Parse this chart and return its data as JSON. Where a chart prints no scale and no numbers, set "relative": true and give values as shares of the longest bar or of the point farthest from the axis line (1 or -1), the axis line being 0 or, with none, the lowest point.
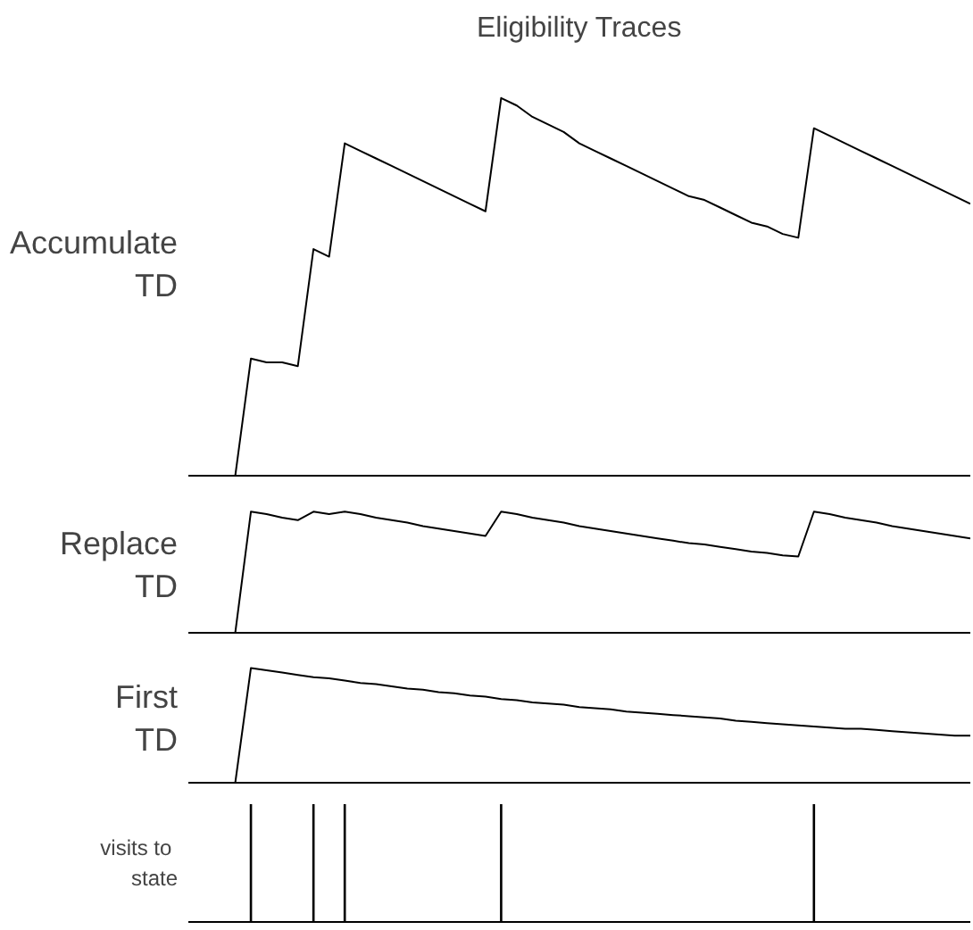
{
  "chart_data": [
    {
      "type": "line",
      "title": "Eligibility Traces",
      "ylabel": "Accumulate\nTD",
      "relative": true,
      "categories": [
        null,
        null,
        null,
        null,
        null,
        null,
        null,
        null,
        null,
        null,
        null,
        null,
        null,
        null,
        null,
        null,
        null,
        null,
        null,
        null,
        null,
        null,
        null,
        null,
        null,
        null,
        null,
        null,
        null,
        null,
        null,
        null,
        null,
        null,
        null,
        null,
        null,
        null,
        null,
        null,
        null,
        null,
        null,
        null,
        null,
        null,
        null,
        null,
        null,
        null,
        null
      ],
      "series": [
        {
          "color": "#000000",
          "values": [
            0,
            0,
            0,
            0,
            0.31,
            0.3,
            0.3,
            0.29,
            0.6,
            0.58,
            0.88,
            0.86,
            0.84,
            0.82,
            0.8,
            0.78,
            0.76,
            0.74,
            0.72,
            0.7,
            1,
            0.98,
            0.95,
            0.93,
            0.91,
            0.88,
            0.86,
            0.84,
            0.82,
            0.8,
            0.78,
            0.76,
            0.74,
            0.73,
            0.71,
            0.69,
            0.67,
            0.66,
            0.64,
            0.63,
            0.92,
            0.9,
            0.88,
            0.86,
            0.84,
            0.82,
            0.8,
            0.78,
            0.76,
            0.74,
            0.72
          ]
        }
      ]
    },
    {
      "type": "line",
      "ylabel": "Replace\nTD",
      "relative": true,
      "categories": [
        null,
        null,
        null,
        null,
        null,
        null,
        null,
        null,
        null,
        null,
        null,
        null,
        null,
        null,
        null,
        null,
        null,
        null,
        null,
        null,
        null,
        null,
        null,
        null,
        null,
        null,
        null,
        null,
        null,
        null,
        null,
        null,
        null,
        null,
        null,
        null,
        null,
        null,
        null,
        null,
        null,
        null,
        null,
        null,
        null,
        null,
        null,
        null,
        null,
        null,
        null
      ],
      "series": [
        {
          "color": "#000000",
          "values": [
            0,
            0,
            0,
            0,
            1,
            0.98,
            0.95,
            0.93,
            1,
            0.98,
            1,
            0.98,
            0.95,
            0.93,
            0.91,
            0.88,
            0.86,
            0.84,
            0.82,
            0.8,
            1,
            0.98,
            0.95,
            0.93,
            0.91,
            0.88,
            0.86,
            0.84,
            0.82,
            0.8,
            0.78,
            0.76,
            0.74,
            0.73,
            0.71,
            0.69,
            0.67,
            0.66,
            0.64,
            0.63,
            1,
            0.98,
            0.95,
            0.93,
            0.91,
            0.88,
            0.86,
            0.84,
            0.82,
            0.8,
            0.78
          ]
        }
      ]
    },
    {
      "type": "line",
      "ylabel": "First\nTD",
      "relative": true,
      "categories": [
        null,
        null,
        null,
        null,
        null,
        null,
        null,
        null,
        null,
        null,
        null,
        null,
        null,
        null,
        null,
        null,
        null,
        null,
        null,
        null,
        null,
        null,
        null,
        null,
        null,
        null,
        null,
        null,
        null,
        null,
        null,
        null,
        null,
        null,
        null,
        null,
        null,
        null,
        null,
        null,
        null,
        null,
        null,
        null,
        null,
        null,
        null,
        null,
        null,
        null,
        null
      ],
      "series": [
        {
          "color": "#000000",
          "values": [
            0,
            0,
            0,
            0,
            1,
            0.98,
            0.96,
            0.94,
            0.92,
            0.91,
            0.89,
            0.87,
            0.86,
            0.84,
            0.82,
            0.81,
            0.79,
            0.78,
            0.76,
            0.75,
            0.73,
            0.72,
            0.7,
            0.69,
            0.68,
            0.66,
            0.65,
            0.64,
            0.62,
            0.61,
            0.6,
            0.59,
            0.58,
            0.57,
            0.56,
            0.54,
            0.53,
            0.52,
            0.51,
            0.5,
            0.49,
            0.48,
            0.47,
            0.47,
            0.46,
            0.45,
            0.44,
            0.43,
            0.42,
            0.41,
            0.41
          ]
        }
      ]
    },
    {
      "type": "bar",
      "ylabel": "visits  to\nstate",
      "relative": true,
      "categories": [
        null,
        null,
        null,
        null,
        null,
        null,
        null,
        null,
        null,
        null,
        null,
        null,
        null,
        null,
        null,
        null,
        null,
        null,
        null,
        null,
        null,
        null,
        null,
        null,
        null,
        null,
        null,
        null,
        null,
        null,
        null,
        null,
        null,
        null,
        null,
        null,
        null,
        null,
        null,
        null,
        null,
        null,
        null,
        null,
        null,
        null,
        null,
        null,
        null,
        null,
        null
      ],
      "series": [
        {
          "color": "#000000",
          "values": [
            0,
            0,
            0,
            0,
            1,
            0,
            0,
            0,
            1,
            0,
            1,
            0,
            0,
            0,
            0,
            0,
            0,
            0,
            0,
            0,
            1,
            0,
            0,
            0,
            0,
            0,
            0,
            0,
            0,
            0,
            0,
            0,
            0,
            0,
            0,
            0,
            0,
            0,
            0,
            0,
            1,
            0,
            0,
            0,
            0,
            0,
            0,
            0,
            0,
            0,
            0
          ]
        }
      ]
    }
  ]
}
